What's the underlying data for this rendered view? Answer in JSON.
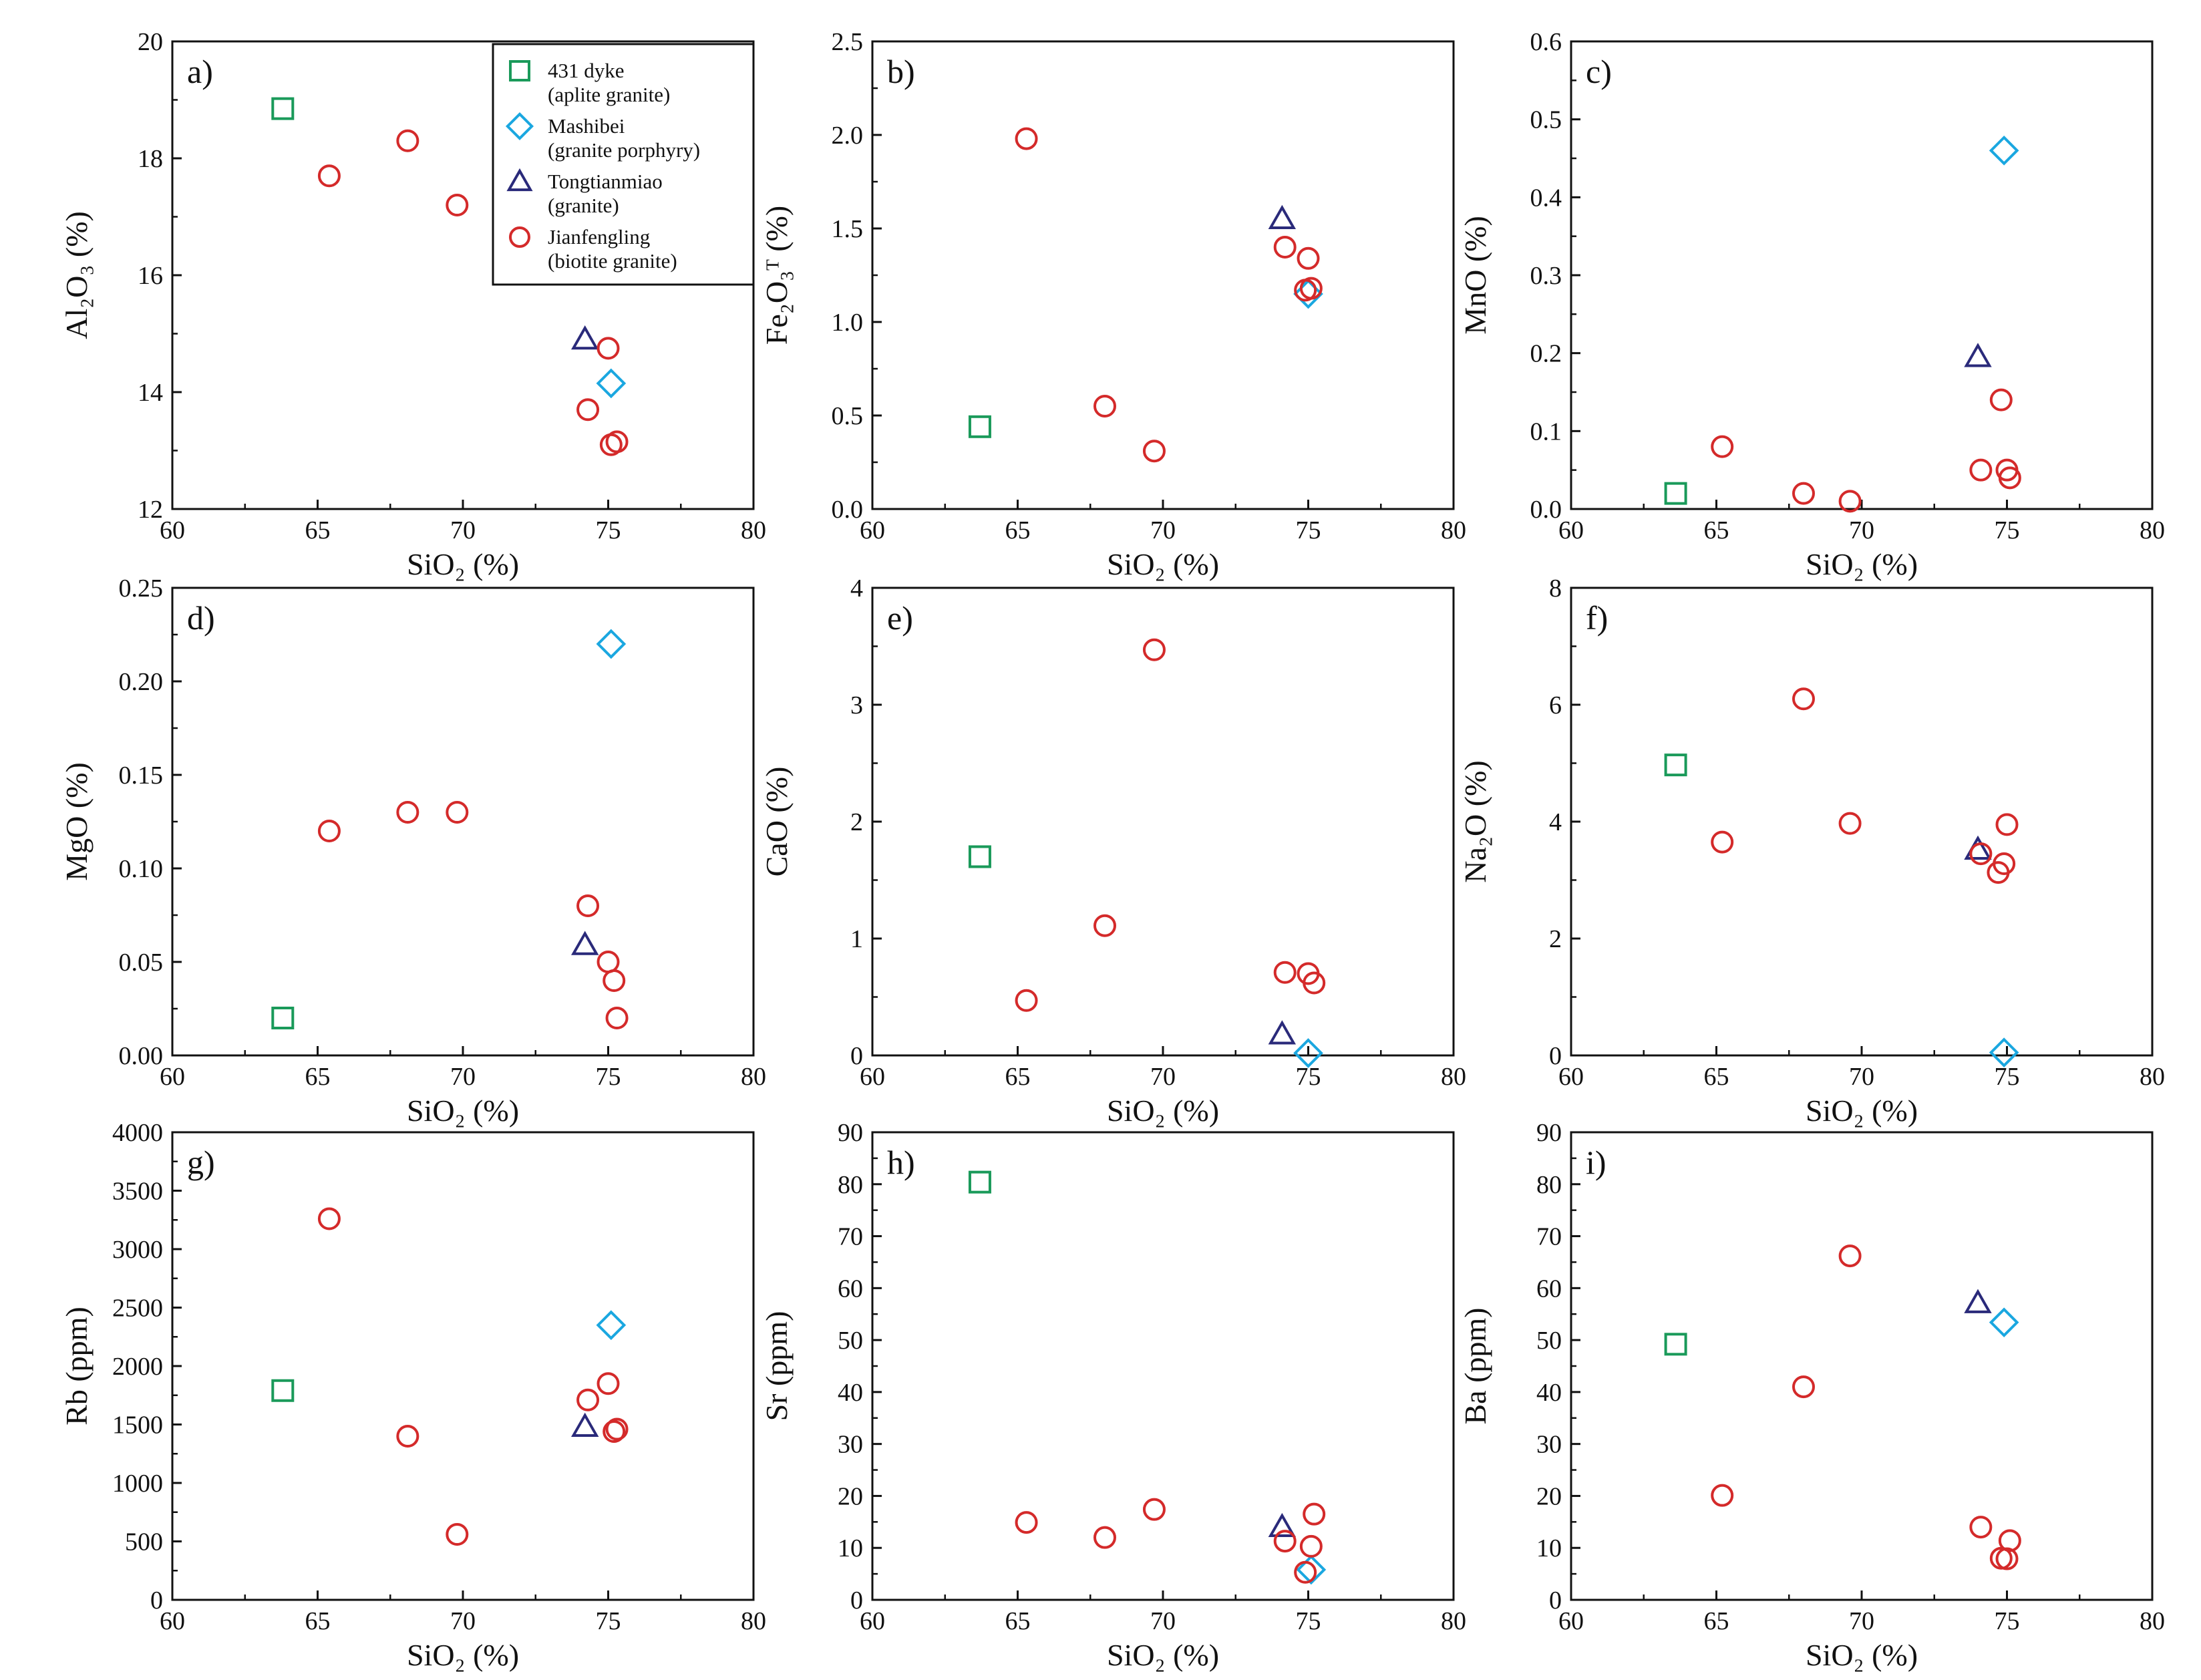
{
  "colors": {
    "431 dyke": "#1a9a5a",
    "Mashibei": "#1aa7e0",
    "Tongtianmiao": "#2a2a7a",
    "Jianfengling": "#d42a2a"
  },
  "legend": [
    {
      "key": "431 dyke",
      "marker": "square",
      "line1": "431 dyke",
      "line2": "(aplite granite)"
    },
    {
      "key": "Mashibei",
      "marker": "diamond",
      "line1": "Mashibei",
      "line2": "(granite porphyry)"
    },
    {
      "key": "Tongtianmiao",
      "marker": "triangle",
      "line1": "Tongtianmiao",
      "line2": "(granite)"
    },
    {
      "key": "Jianfengling",
      "marker": "circle",
      "line1": "Jianfengling",
      "line2": "(biotite granite)"
    }
  ],
  "chart_data": [
    {
      "type": "scatter",
      "panel": "a)",
      "xlabel": "SiO₂ (%)",
      "ylabel": "Al₂O₃ (%)",
      "xlim": [
        60,
        80
      ],
      "ylim": [
        12,
        20
      ],
      "xticks": [
        "60",
        "65",
        "70",
        "75",
        "80"
      ],
      "yticks": [
        "12",
        "14",
        "16",
        "18",
        "20"
      ],
      "series": [
        {
          "name": "431 dyke",
          "points": [
            [
              63.8,
              18.85
            ]
          ]
        },
        {
          "name": "Mashibei",
          "points": [
            [
              75.1,
              14.15
            ]
          ]
        },
        {
          "name": "Tongtianmiao",
          "points": [
            [
              74.2,
              14.9
            ]
          ]
        },
        {
          "name": "Jianfengling",
          "points": [
            [
              65.4,
              17.7
            ],
            [
              68.1,
              18.3
            ],
            [
              69.8,
              17.2
            ],
            [
              75.0,
              14.75
            ],
            [
              74.3,
              13.7
            ],
            [
              75.1,
              13.1
            ],
            [
              75.3,
              13.15
            ]
          ]
        }
      ]
    },
    {
      "type": "scatter",
      "panel": "b)",
      "xlabel": "SiO₂ (%)",
      "ylabel": "Fe₂O₃ᵀ (%)",
      "xlim": [
        60,
        80
      ],
      "ylim": [
        0,
        2.5
      ],
      "xticks": [
        "60",
        "65",
        "70",
        "75",
        "80"
      ],
      "yticks": [
        "0.0",
        "0.5",
        "1.0",
        "1.5",
        "2.0",
        "2.5"
      ],
      "series": [
        {
          "name": "431 dyke",
          "points": [
            [
              63.7,
              0.44
            ]
          ]
        },
        {
          "name": "Mashibei",
          "points": [
            [
              75.0,
              1.15
            ]
          ]
        },
        {
          "name": "Tongtianmiao",
          "points": [
            [
              74.1,
              1.55
            ]
          ]
        },
        {
          "name": "Jianfengling",
          "points": [
            [
              65.3,
              1.98
            ],
            [
              68.0,
              0.55
            ],
            [
              69.7,
              0.31
            ],
            [
              74.2,
              1.4
            ],
            [
              75.0,
              1.34
            ],
            [
              74.9,
              1.17
            ],
            [
              75.1,
              1.18
            ]
          ]
        }
      ]
    },
    {
      "type": "scatter",
      "panel": "c)",
      "xlabel": "SiO₂ (%)",
      "ylabel": "MnO (%)",
      "xlim": [
        60,
        80
      ],
      "ylim": [
        0,
        0.6
      ],
      "xticks": [
        "60",
        "65",
        "70",
        "75",
        "80"
      ],
      "yticks": [
        "0.0",
        "0.1",
        "0.2",
        "0.3",
        "0.4",
        "0.5",
        "0.6"
      ],
      "series": [
        {
          "name": "431 dyke",
          "points": [
            [
              63.6,
              0.02
            ]
          ]
        },
        {
          "name": "Mashibei",
          "points": [
            [
              74.9,
              0.46
            ]
          ]
        },
        {
          "name": "Tongtianmiao",
          "points": [
            [
              74.0,
              0.195
            ]
          ]
        },
        {
          "name": "Jianfengling",
          "points": [
            [
              65.2,
              0.08
            ],
            [
              68.0,
              0.02
            ],
            [
              69.6,
              0.01
            ],
            [
              74.1,
              0.05
            ],
            [
              74.8,
              0.14
            ],
            [
              75.0,
              0.05
            ],
            [
              75.1,
              0.04
            ]
          ]
        }
      ]
    },
    {
      "type": "scatter",
      "panel": "d)",
      "xlabel": "SiO₂ (%)",
      "ylabel": "MgO (%)",
      "xlim": [
        60,
        80
      ],
      "ylim": [
        0,
        0.25
      ],
      "xticks": [
        "60",
        "65",
        "70",
        "75",
        "80"
      ],
      "yticks": [
        "0.00",
        "0.05",
        "0.10",
        "0.15",
        "0.20",
        "0.25"
      ],
      "series": [
        {
          "name": "431 dyke",
          "points": [
            [
              63.8,
              0.02
            ]
          ]
        },
        {
          "name": "Mashibei",
          "points": [
            [
              75.1,
              0.22
            ]
          ]
        },
        {
          "name": "Tongtianmiao",
          "points": [
            [
              74.2,
              0.059
            ]
          ]
        },
        {
          "name": "Jianfengling",
          "points": [
            [
              65.4,
              0.12
            ],
            [
              68.1,
              0.13
            ],
            [
              69.8,
              0.13
            ],
            [
              74.3,
              0.08
            ],
            [
              75.0,
              0.05
            ],
            [
              75.2,
              0.04
            ],
            [
              75.3,
              0.02
            ]
          ]
        }
      ]
    },
    {
      "type": "scatter",
      "panel": "e)",
      "xlabel": "SiO₂ (%)",
      "ylabel": "CaO (%)",
      "xlim": [
        60,
        80
      ],
      "ylim": [
        0,
        4
      ],
      "xticks": [
        "60",
        "65",
        "70",
        "75",
        "80"
      ],
      "yticks": [
        "0",
        "1",
        "2",
        "3",
        "4"
      ],
      "series": [
        {
          "name": "431 dyke",
          "points": [
            [
              63.7,
              1.7
            ]
          ]
        },
        {
          "name": "Mashibei",
          "points": [
            [
              75.0,
              0.02
            ]
          ]
        },
        {
          "name": "Tongtianmiao",
          "points": [
            [
              74.1,
              0.18
            ]
          ]
        },
        {
          "name": "Jianfengling",
          "points": [
            [
              65.3,
              0.47
            ],
            [
              68.0,
              1.11
            ],
            [
              69.7,
              3.47
            ],
            [
              74.2,
              0.71
            ],
            [
              75.0,
              0.7
            ],
            [
              75.2,
              0.62
            ]
          ]
        }
      ]
    },
    {
      "type": "scatter",
      "panel": "f)",
      "xlabel": "SiO₂ (%)",
      "ylabel": "Na₂O (%)",
      "xlim": [
        60,
        80
      ],
      "ylim": [
        0,
        8
      ],
      "xticks": [
        "60",
        "65",
        "70",
        "75",
        "80"
      ],
      "yticks": [
        "0",
        "2",
        "4",
        "6",
        "8"
      ],
      "series": [
        {
          "name": "431 dyke",
          "points": [
            [
              63.6,
              4.97
            ]
          ]
        },
        {
          "name": "Mashibei",
          "points": [
            [
              74.9,
              0.05
            ]
          ]
        },
        {
          "name": "Tongtianmiao",
          "points": [
            [
              74.0,
              3.52
            ]
          ]
        },
        {
          "name": "Jianfengling",
          "points": [
            [
              65.2,
              3.65
            ],
            [
              68.0,
              6.1
            ],
            [
              69.6,
              3.97
            ],
            [
              74.1,
              3.45
            ],
            [
              74.7,
              3.13
            ],
            [
              74.9,
              3.28
            ],
            [
              75.0,
              3.95
            ]
          ]
        }
      ]
    },
    {
      "type": "scatter",
      "panel": "g)",
      "xlabel": "SiO₂ (%)",
      "ylabel": "Rb (ppm)",
      "xlim": [
        60,
        80
      ],
      "ylim": [
        0,
        4000
      ],
      "xticks": [
        "60",
        "65",
        "70",
        "75",
        "80"
      ],
      "yticks": [
        "0",
        "500",
        "1000",
        "1500",
        "2000",
        "2500",
        "3000",
        "3500",
        "4000"
      ],
      "series": [
        {
          "name": "431 dyke",
          "points": [
            [
              63.8,
              1790
            ]
          ]
        },
        {
          "name": "Mashibei",
          "points": [
            [
              75.1,
              2350
            ]
          ]
        },
        {
          "name": "Tongtianmiao",
          "points": [
            [
              74.2,
              1480
            ]
          ]
        },
        {
          "name": "Jianfengling",
          "points": [
            [
              65.4,
              3260
            ],
            [
              68.1,
              1400
            ],
            [
              69.8,
              560
            ],
            [
              74.3,
              1710
            ],
            [
              75.0,
              1850
            ],
            [
              75.2,
              1440
            ],
            [
              75.3,
              1460
            ]
          ]
        }
      ]
    },
    {
      "type": "scatter",
      "panel": "h)",
      "xlabel": "SiO₂ (%)",
      "ylabel": "Sr (ppm)",
      "xlim": [
        60,
        80
      ],
      "ylim": [
        0,
        90
      ],
      "xticks": [
        "60",
        "65",
        "70",
        "75",
        "80"
      ],
      "yticks": [
        "0",
        "10",
        "20",
        "30",
        "40",
        "50",
        "60",
        "70",
        "80",
        "90"
      ],
      "series": [
        {
          "name": "431 dyke",
          "points": [
            [
              63.7,
              80.4
            ]
          ]
        },
        {
          "name": "Mashibei",
          "points": [
            [
              75.1,
              5.8
            ]
          ]
        },
        {
          "name": "Tongtianmiao",
          "points": [
            [
              74.1,
              14.0
            ]
          ]
        },
        {
          "name": "Jianfengling",
          "points": [
            [
              65.3,
              14.9
            ],
            [
              68.0,
              12.0
            ],
            [
              69.7,
              17.4
            ],
            [
              74.2,
              11.3
            ],
            [
              74.9,
              5.3
            ],
            [
              75.1,
              10.3
            ],
            [
              75.2,
              16.5
            ]
          ]
        }
      ]
    },
    {
      "type": "scatter",
      "panel": "i)",
      "xlabel": "SiO₂ (%)",
      "ylabel": "Ba (ppm)",
      "xlim": [
        60,
        80
      ],
      "ylim": [
        0,
        90
      ],
      "xticks": [
        "60",
        "65",
        "70",
        "75",
        "80"
      ],
      "yticks": [
        "0",
        "10",
        "20",
        "30",
        "40",
        "50",
        "60",
        "70",
        "80",
        "90"
      ],
      "series": [
        {
          "name": "431 dyke",
          "points": [
            [
              63.6,
              49.2
            ]
          ]
        },
        {
          "name": "Mashibei",
          "points": [
            [
              74.9,
              53.4
            ]
          ]
        },
        {
          "name": "Tongtianmiao",
          "points": [
            [
              74.0,
              57.1
            ]
          ]
        },
        {
          "name": "Jianfengling",
          "points": [
            [
              65.2,
              20.1
            ],
            [
              68.0,
              41.0
            ],
            [
              69.6,
              66.2
            ],
            [
              74.1,
              14.0
            ],
            [
              74.8,
              8.0
            ],
            [
              75.0,
              7.9
            ],
            [
              75.1,
              11.4
            ]
          ]
        }
      ]
    }
  ]
}
